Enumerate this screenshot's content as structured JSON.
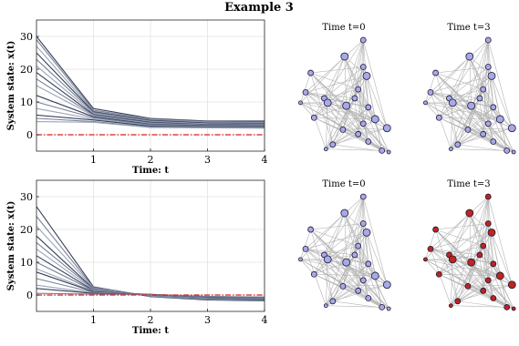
{
  "figure_title": "Example 3",
  "chart_data": [
    {
      "type": "line",
      "xlabel": "Time: t",
      "ylabel": "System state: x(t)",
      "xlim": [
        0,
        4
      ],
      "ylim": [
        -5,
        35
      ],
      "xticks": [
        1,
        2,
        3,
        4
      ],
      "yticks": [
        0,
        10,
        20,
        30
      ],
      "grid": true,
      "x": [
        0,
        1,
        2,
        3,
        4
      ],
      "reference_line": {
        "y": 0,
        "color": "#dd1c1c",
        "style": "dash-dot"
      },
      "series": [
        {
          "values": [
            30,
            8,
            5,
            4.2,
            4.2
          ]
        },
        {
          "values": [
            29,
            7.5,
            4.8,
            4.0,
            3.9
          ]
        },
        {
          "values": [
            27,
            7.2,
            4.6,
            3.8,
            3.7
          ]
        },
        {
          "values": [
            25,
            7.0,
            4.4,
            3.6,
            3.5
          ]
        },
        {
          "values": [
            23,
            6.8,
            4.2,
            3.4,
            3.3
          ]
        },
        {
          "values": [
            21,
            6.5,
            4.0,
            3.3,
            3.2
          ]
        },
        {
          "values": [
            19,
            6.2,
            3.8,
            3.1,
            3.0
          ]
        },
        {
          "values": [
            17,
            6.0,
            3.6,
            3.0,
            2.9
          ]
        },
        {
          "values": [
            15,
            5.8,
            3.4,
            2.9,
            2.8
          ]
        },
        {
          "values": [
            12,
            5.5,
            3.2,
            2.8,
            2.7
          ]
        },
        {
          "values": [
            10,
            5.2,
            3.0,
            2.6,
            2.5
          ]
        },
        {
          "values": [
            8,
            4.8,
            2.8,
            2.5,
            2.4
          ]
        },
        {
          "values": [
            6,
            4.5,
            2.6,
            2.4,
            2.3
          ]
        },
        {
          "values": [
            5,
            4.0,
            2.4,
            2.2,
            2.2
          ]
        },
        {
          "values": [
            4,
            3.8,
            2.2,
            2.1,
            2.0
          ]
        }
      ]
    },
    {
      "type": "line",
      "xlabel": "Time: t",
      "ylabel": "System state: x(t)",
      "xlim": [
        0,
        4
      ],
      "ylim": [
        -5,
        35
      ],
      "xticks": [
        1,
        2,
        3,
        4
      ],
      "yticks": [
        0,
        10,
        20,
        30
      ],
      "grid": true,
      "x": [
        0,
        1,
        2,
        3,
        4
      ],
      "reference_line": {
        "y": 0,
        "color": "#dd1c1c",
        "style": "dash-dot"
      },
      "series": [
        {
          "values": [
            27,
            2.5,
            -0.5,
            -1.5,
            -1.8
          ]
        },
        {
          "values": [
            24,
            2.3,
            -0.4,
            -1.4,
            -1.7
          ]
        },
        {
          "values": [
            21,
            2.1,
            -0.3,
            -1.3,
            -1.6
          ]
        },
        {
          "values": [
            18,
            1.9,
            -0.2,
            -1.2,
            -1.5
          ]
        },
        {
          "values": [
            16,
            1.8,
            -0.2,
            -1.1,
            -1.4
          ]
        },
        {
          "values": [
            14,
            1.6,
            -0.1,
            -1.0,
            -1.3
          ]
        },
        {
          "values": [
            12,
            1.4,
            0.0,
            -0.9,
            -1.2
          ]
        },
        {
          "values": [
            10,
            1.3,
            0.0,
            -0.8,
            -1.1
          ]
        },
        {
          "values": [
            8,
            1.1,
            0.1,
            -0.8,
            -1.0
          ]
        },
        {
          "values": [
            7,
            1.0,
            0.1,
            -0.7,
            -1.0
          ]
        },
        {
          "values": [
            5,
            0.8,
            0.2,
            -0.6,
            -0.9
          ]
        },
        {
          "values": [
            3,
            0.6,
            0.2,
            -0.5,
            -0.8
          ]
        },
        {
          "values": [
            2,
            0.5,
            0.2,
            -0.5,
            -0.7
          ]
        },
        {
          "values": [
            0.5,
            0.3,
            0.1,
            -0.4,
            -0.6
          ]
        }
      ]
    }
  ],
  "series_color_dark": "#3b3f5c",
  "series_color_light": "#aab8c8",
  "graphs": [
    {
      "title": "Time t=0",
      "node_color": "#a9a9e8"
    },
    {
      "title": "Time t=3",
      "node_color": "#a9a9e8"
    },
    {
      "title": "Time t=0",
      "node_color": "#a9a9e8"
    },
    {
      "title": "Time t=3",
      "node_color": "#c0241c"
    }
  ],
  "edge_color": "#b4b4b4"
}
